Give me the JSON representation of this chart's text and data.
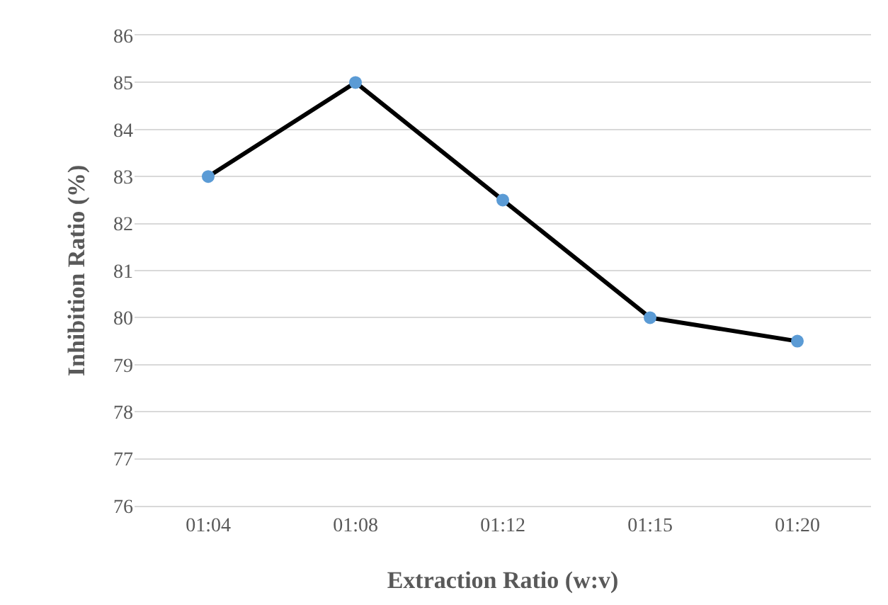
{
  "chart_data": {
    "type": "line",
    "xlabel": "Extraction Ratio (w:v)",
    "ylabel": "Inhibition Ratio (%)",
    "categories": [
      "01:04",
      "01:08",
      "01:12",
      "01:15",
      "01:20"
    ],
    "series": [
      {
        "color": "#000000",
        "colors": [
          "#5b9bd5",
          "#5b9bd5",
          "#5b9bd5",
          "#5b9bd5",
          "#5b9bd5"
        ],
        "values": [
          83,
          85,
          82.5,
          80,
          79.5
        ]
      }
    ],
    "ylim": [
      76,
      86
    ],
    "yticks": [
      76,
      77,
      78,
      79,
      80,
      81,
      82,
      83,
      84,
      85,
      86
    ],
    "grid": "y",
    "marker": "circle",
    "line_style": "solid"
  }
}
